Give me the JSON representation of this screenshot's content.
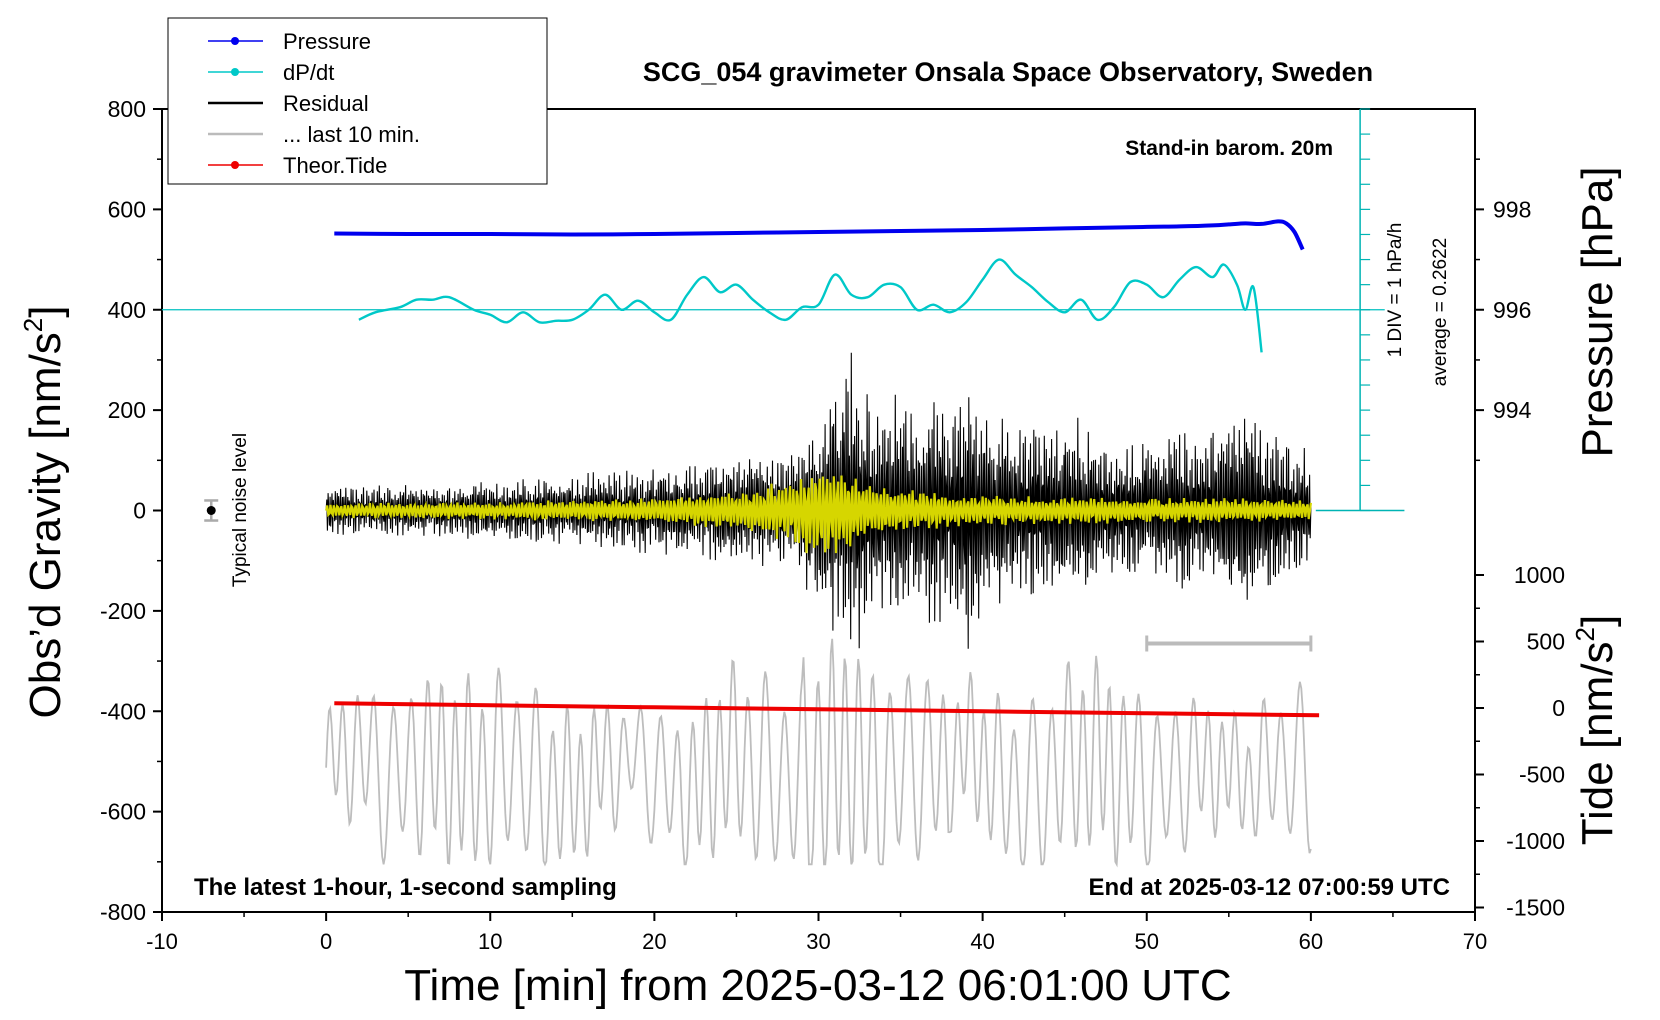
{
  "chart_data": {
    "type": "line",
    "title": "SCG_054 gravimeter Onsala Space Observatory, Sweden",
    "xlabel": "Time [min] from 2025-03-12 06:01:00 UTC",
    "ylabel_left_main": "Obs’d Gravity [nm/s",
    "ylabel_left_sup": "2",
    "ylabel_left_end": "]",
    "ylabel_right_pressure": "Pressure [hPa]",
    "ylabel_right_tide_main": "Tide [nm/s",
    "ylabel_right_tide_sup": "2",
    "ylabel_right_tide_end": "]",
    "xlim": [
      -10,
      70
    ],
    "ylim": [
      -800,
      800
    ],
    "x_ticks": [
      "-10",
      "0",
      "10",
      "20",
      "30",
      "40",
      "50",
      "60",
      "70"
    ],
    "y_ticks": [
      "-800",
      "-600",
      "-400",
      "-200",
      "0",
      "200",
      "400",
      "600",
      "800"
    ],
    "pressure_ticks": [
      "994",
      "996",
      "998"
    ],
    "tide_ticks": [
      "-1500",
      "-1000",
      "-500",
      "0",
      "500",
      "1000"
    ],
    "legend": [
      {
        "label": "Pressure",
        "color": "#0000ee",
        "marker": true
      },
      {
        "label": "dP/dt",
        "color": "#00c8c8",
        "marker": true
      },
      {
        "label": "Residual",
        "color": "#000000",
        "marker": false
      },
      {
        "label": "... last 10 min.",
        "color": "#bbbbbb",
        "marker": false
      },
      {
        "label": "Theor.Tide",
        "color": "#ee0000",
        "marker": true
      }
    ],
    "annotations": {
      "barometer": "Stand-in barom. 20m",
      "scale": "1 DIV = 1 hPa/h",
      "average": "average = 0.2622",
      "noise": "Typical noise level",
      "bottom_left": "The latest 1-hour, 1-second sampling",
      "bottom_right": "End at 2025-03-12 07:00:59 UTC"
    },
    "series": [
      {
        "name": "Pressure",
        "axis": "pressure_hPa",
        "x": [
          0.5,
          5,
          10,
          15,
          20,
          25,
          30,
          35,
          40,
          45,
          50,
          52,
          54,
          55,
          56,
          57,
          58,
          58.5,
          59,
          59.5
        ],
        "values": [
          997.52,
          997.51,
          997.51,
          997.5,
          997.51,
          997.53,
          997.55,
          997.57,
          997.59,
          997.62,
          997.65,
          997.66,
          997.68,
          997.7,
          997.72,
          997.71,
          997.76,
          997.72,
          997.55,
          997.2
        ]
      },
      {
        "name": "dP/dt",
        "axis": "gravity_offset",
        "x": [
          2,
          3,
          4.5,
          5.5,
          6.5,
          7.5,
          9,
          10,
          11,
          12,
          13,
          14,
          15,
          16,
          17,
          18,
          19,
          20,
          21,
          22,
          23,
          24,
          25,
          26,
          27,
          28,
          29,
          30,
          31,
          32,
          33,
          34,
          35,
          36,
          37,
          38,
          39,
          40,
          41,
          42,
          43,
          44,
          45,
          46,
          47,
          48,
          49,
          50,
          51,
          52,
          53,
          54,
          54.7,
          55.5,
          56,
          56.5,
          57
        ],
        "values": [
          380,
          395,
          405,
          420,
          420,
          425,
          400,
          390,
          375,
          395,
          375,
          378,
          380,
          400,
          430,
          400,
          418,
          395,
          380,
          430,
          465,
          435,
          450,
          420,
          395,
          380,
          405,
          410,
          470,
          430,
          425,
          450,
          445,
          400,
          410,
          395,
          415,
          460,
          500,
          470,
          445,
          415,
          395,
          420,
          380,
          405,
          455,
          450,
          425,
          460,
          485,
          465,
          490,
          450,
          400,
          445,
          315
        ]
      },
      {
        "name": "Residual",
        "axis": "gravity",
        "envelope_x": [
          0,
          10,
          20,
          28,
          30,
          31,
          32,
          33,
          34,
          35,
          36,
          37,
          38,
          39,
          40,
          42,
          44,
          46,
          48,
          50,
          52,
          54,
          56,
          58,
          60
        ],
        "envelope_amp": [
          50,
          60,
          90,
          120,
          200,
          290,
          340,
          250,
          200,
          300,
          160,
          260,
          200,
          310,
          200,
          190,
          180,
          190,
          130,
          150,
          160,
          170,
          210,
          160,
          120
        ]
      },
      {
        "name": "... last 10 min.",
        "axis": "gravity",
        "x_range": [
          0,
          60
        ],
        "values": [
          -490,
          -330,
          -620,
          -450,
          -500,
          -580,
          -430,
          -640,
          -690,
          -480,
          -400,
          -620,
          -710,
          -360,
          -500,
          -600,
          -550,
          -350,
          -660,
          -420,
          -520,
          -300,
          -640,
          -710,
          -440,
          -380,
          -560,
          -650,
          -500,
          -470,
          -600,
          -430,
          -540
        ]
      },
      {
        "name": "Theor.Tide",
        "axis": "tide",
        "x": [
          0.5,
          10,
          20,
          30,
          40,
          50,
          60.5
        ],
        "values": [
          35,
          20,
          5,
          -10,
          -25,
          -40,
          -55
        ]
      },
      {
        "name": "Residual filtered",
        "axis": "gravity",
        "color": "#d6d600",
        "envelope_x": [
          0,
          10,
          20,
          25,
          28,
          30,
          31,
          32,
          33,
          34,
          35,
          38,
          40,
          45,
          50,
          55,
          60
        ],
        "envelope_amp": [
          15,
          18,
          25,
          40,
          60,
          100,
          90,
          80,
          60,
          55,
          45,
          35,
          30,
          28,
          25,
          25,
          20
        ]
      }
    ],
    "noise_bar": {
      "x": -7,
      "y": 0,
      "err": 20
    },
    "last_window_bar": {
      "x_start": 50,
      "x_end": 60,
      "y": -265
    }
  }
}
